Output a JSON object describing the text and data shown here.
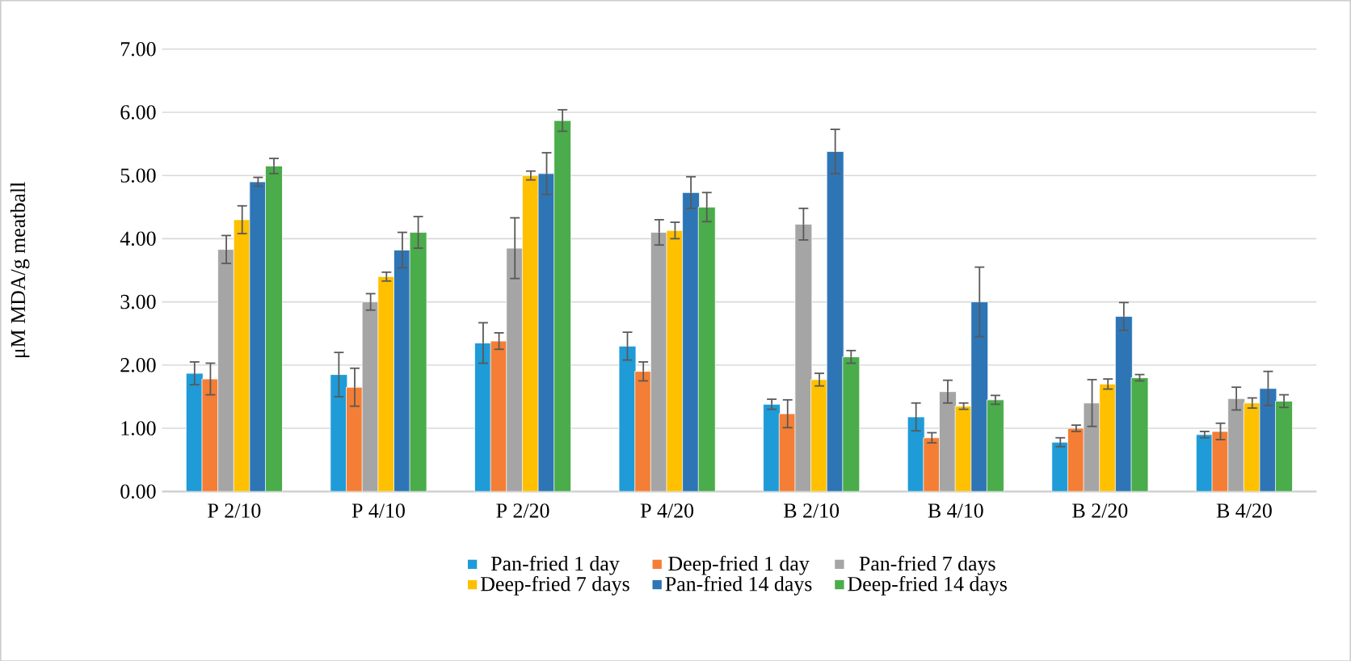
{
  "chart_data": {
    "type": "bar",
    "ylabel": "μM MDA/g meatball",
    "categories": [
      "P 2/10",
      "P 4/10",
      "P 2/20",
      "P 4/20",
      "B 2/10",
      "B 4/10",
      "B 2/20",
      "B 4/20"
    ],
    "series": [
      {
        "name": "Pan-fried 1 day",
        "color": "#1f9bd7",
        "values": [
          1.87,
          1.85,
          2.35,
          2.3,
          1.38,
          1.18,
          0.78,
          0.9
        ],
        "errors": [
          0.18,
          0.35,
          0.32,
          0.22,
          0.08,
          0.22,
          0.07,
          0.05
        ]
      },
      {
        "name": "Deep-fried 1 day",
        "color": "#f47e35",
        "values": [
          1.78,
          1.65,
          2.38,
          1.9,
          1.23,
          0.85,
          1.0,
          0.95
        ],
        "errors": [
          0.25,
          0.3,
          0.13,
          0.15,
          0.22,
          0.08,
          0.05,
          0.13
        ]
      },
      {
        "name": "Pan-fried 7 days",
        "color": "#a5a5a5",
        "values": [
          3.83,
          3.0,
          3.85,
          4.1,
          4.23,
          1.58,
          1.4,
          1.47
        ],
        "errors": [
          0.22,
          0.13,
          0.48,
          0.2,
          0.25,
          0.18,
          0.37,
          0.18
        ]
      },
      {
        "name": "Deep-fried 7 days",
        "color": "#ffc000",
        "values": [
          4.3,
          3.4,
          5.0,
          4.13,
          1.77,
          1.35,
          1.7,
          1.4
        ],
        "errors": [
          0.22,
          0.07,
          0.07,
          0.13,
          0.1,
          0.05,
          0.08,
          0.08
        ]
      },
      {
        "name": "Pan-fried 14 days",
        "color": "#2e75b6",
        "values": [
          4.9,
          3.82,
          5.03,
          4.73,
          5.38,
          3.0,
          2.77,
          1.63
        ],
        "errors": [
          0.07,
          0.28,
          0.33,
          0.25,
          0.35,
          0.55,
          0.22,
          0.27
        ]
      },
      {
        "name": "Deep-fried 14 days",
        "color": "#4aac4a",
        "values": [
          5.15,
          4.1,
          5.87,
          4.5,
          2.13,
          1.45,
          1.8,
          1.43
        ],
        "errors": [
          0.12,
          0.25,
          0.17,
          0.23,
          0.1,
          0.07,
          0.05,
          0.1
        ]
      }
    ],
    "ylim": [
      0,
      7
    ],
    "yticks": [
      {
        "value": 0,
        "label": "0.00"
      },
      {
        "value": 1,
        "label": "1.00"
      },
      {
        "value": 2,
        "label": "2.00"
      },
      {
        "value": 3,
        "label": "3.00"
      },
      {
        "value": 4,
        "label": "4.00"
      },
      {
        "value": 5,
        "label": "5.00"
      },
      {
        "value": 6,
        "label": "6.00"
      },
      {
        "value": 7,
        "label": "7.00"
      }
    ],
    "grid": "y",
    "legend": "bottom"
  }
}
